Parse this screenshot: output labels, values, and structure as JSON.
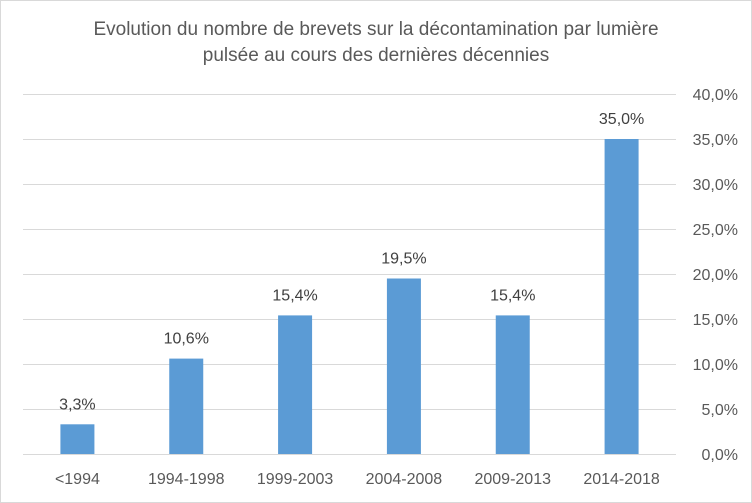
{
  "chart_data": {
    "type": "bar",
    "title_lines": [
      "Evolution du nombre de brevets sur la décontamination par lumière",
      "pulsée au cours des dernières décennies"
    ],
    "xlabel": "",
    "ylabel": "",
    "categories": [
      "<1994",
      "1994-1998",
      "1999-2003",
      "2004-2008",
      "2009-2013",
      "2014-2018"
    ],
    "values": [
      3.3,
      10.6,
      15.4,
      19.5,
      15.4,
      35.0
    ],
    "data_labels": [
      "3,3%",
      "10,6%",
      "15,4%",
      "19,5%",
      "15,4%",
      "35,0%"
    ],
    "ylim": [
      0,
      40
    ],
    "y_ticks": [
      0,
      5,
      10,
      15,
      20,
      25,
      30,
      35,
      40
    ],
    "y_tick_labels": [
      "0,0%",
      "5,0%",
      "10,0%",
      "15,0%",
      "20,0%",
      "25,0%",
      "30,0%",
      "35,0%",
      "40,0%"
    ],
    "y_axis_side": "right",
    "grid": true,
    "legend": "none",
    "bar_color": "#5b9bd5",
    "grid_color": "#d9d9d9",
    "text_color": "#595959"
  }
}
